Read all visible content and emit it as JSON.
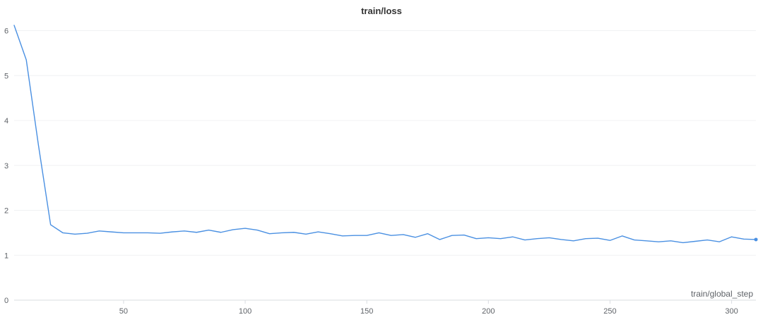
{
  "chart_data": {
    "type": "line",
    "title": "train/loss",
    "xlabel": "train/global_step",
    "ylabel": "",
    "xlim": [
      5,
      310
    ],
    "ylim": [
      0,
      6.15
    ],
    "x_ticks": [
      50,
      100,
      150,
      200,
      250,
      300
    ],
    "y_ticks": [
      0,
      1,
      2,
      3,
      4,
      5,
      6
    ],
    "grid": true,
    "colors": {
      "series": "#4a90e2",
      "grid": "#f0f1f3",
      "text": "#5f6368",
      "title": "#333333"
    },
    "series": [
      {
        "name": "",
        "x": [
          5,
          10,
          15,
          20,
          25,
          30,
          35,
          40,
          45,
          50,
          55,
          60,
          65,
          70,
          75,
          80,
          85,
          90,
          95,
          100,
          105,
          110,
          115,
          120,
          125,
          130,
          135,
          140,
          145,
          150,
          155,
          160,
          165,
          170,
          175,
          180,
          185,
          190,
          195,
          200,
          205,
          210,
          215,
          220,
          225,
          230,
          235,
          240,
          245,
          250,
          255,
          260,
          265,
          270,
          275,
          280,
          285,
          290,
          295,
          300,
          305,
          310
        ],
        "y": [
          6.12,
          5.35,
          3.45,
          1.68,
          1.5,
          1.47,
          1.49,
          1.54,
          1.52,
          1.5,
          1.5,
          1.5,
          1.49,
          1.52,
          1.54,
          1.51,
          1.56,
          1.51,
          1.57,
          1.6,
          1.56,
          1.48,
          1.5,
          1.51,
          1.47,
          1.52,
          1.48,
          1.43,
          1.44,
          1.44,
          1.5,
          1.44,
          1.46,
          1.4,
          1.48,
          1.35,
          1.44,
          1.45,
          1.37,
          1.39,
          1.37,
          1.41,
          1.34,
          1.37,
          1.39,
          1.35,
          1.32,
          1.37,
          1.38,
          1.33,
          1.43,
          1.34,
          1.32,
          1.3,
          1.32,
          1.28,
          1.31,
          1.34,
          1.3,
          1.41,
          1.36,
          1.35
        ]
      }
    ]
  }
}
